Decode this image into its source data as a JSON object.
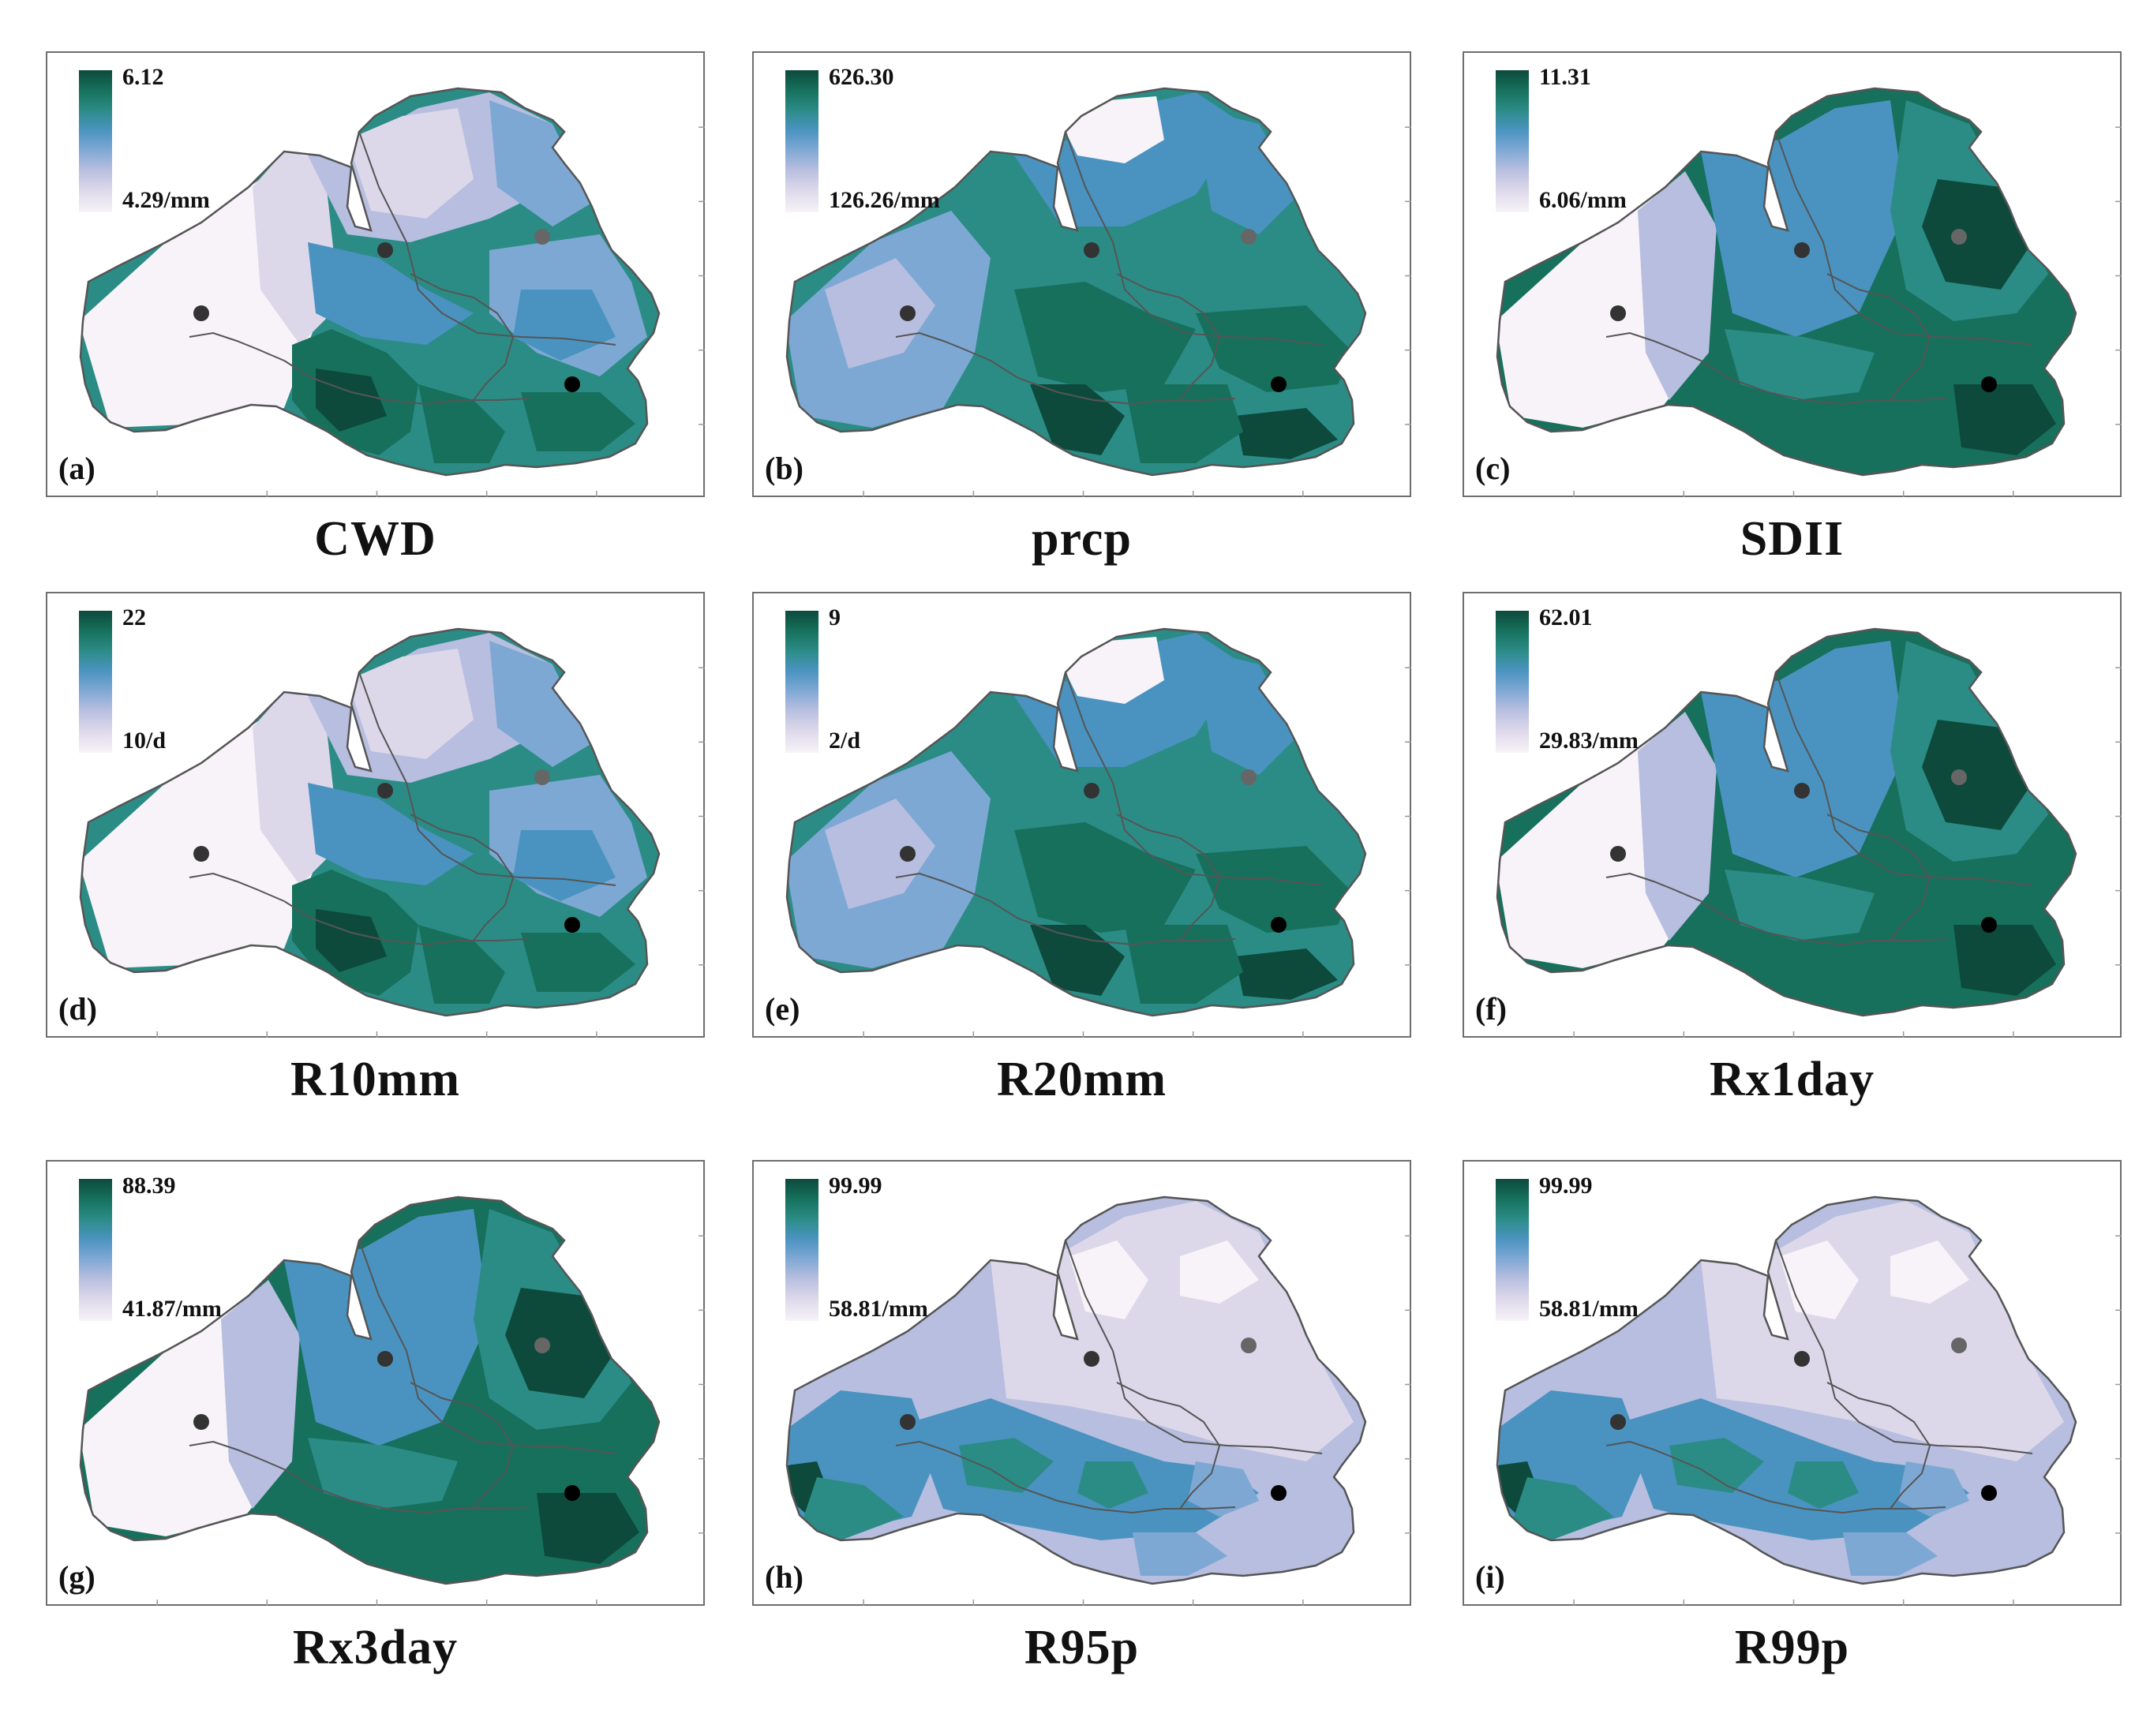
{
  "panels": [
    {
      "label": "(a)",
      "index": "CWD",
      "max": "6.12",
      "min": "4.29/mm",
      "scheme": "a"
    },
    {
      "label": "(b)",
      "index": "prcp",
      "max": "626.30",
      "min": "126.26/mm",
      "scheme": "b"
    },
    {
      "label": "(c)",
      "index": "SDII",
      "max": "11.31",
      "min": "6.06/mm",
      "scheme": "c"
    },
    {
      "label": "(d)",
      "index": "R10mm",
      "max": "22",
      "min": "10/d",
      "scheme": "a"
    },
    {
      "label": "(e)",
      "index": "R20mm",
      "max": "9",
      "min": "2/d",
      "scheme": "b"
    },
    {
      "label": "(f)",
      "index": "Rx1day",
      "max": "62.01",
      "min": "29.83/mm",
      "scheme": "c"
    },
    {
      "label": "(g)",
      "index": "Rx3day",
      "max": "88.39",
      "min": "41.87/mm",
      "scheme": "c"
    },
    {
      "label": "(h)",
      "index": "R95p",
      "max": "99.99",
      "min": "58.81/mm",
      "scheme": "h"
    },
    {
      "label": "(i)",
      "index": "R99p",
      "max": "99.99",
      "min": "58.81/mm",
      "scheme": "h"
    }
  ],
  "colors": {
    "darkest": "#0d4a3c",
    "dark": "#16705c",
    "teal": "#2b8c86",
    "blue": "#4a93c0",
    "lightblue": "#7ea8d4",
    "lavender": "#b7bedf",
    "pale": "#dcd8ea",
    "white": "#f7f3f8",
    "border": "#555555"
  }
}
